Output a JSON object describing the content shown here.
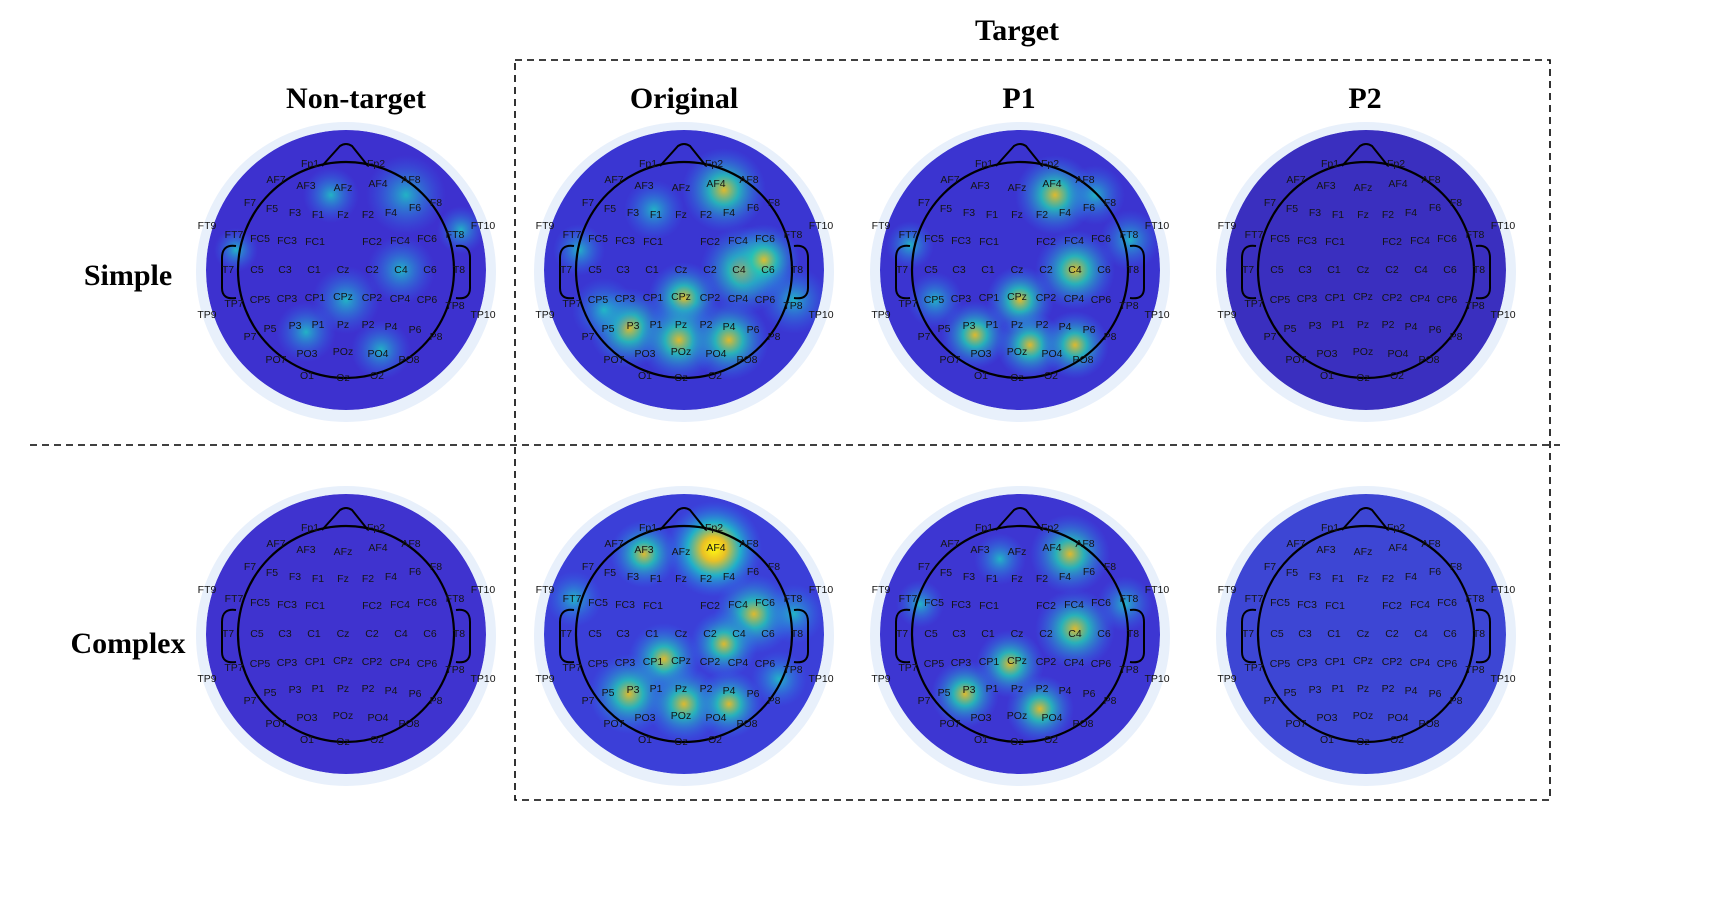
{
  "target_label": "Target",
  "columns": [
    {
      "key": "nontarget",
      "label": "Non-target"
    },
    {
      "key": "original",
      "label": "Original"
    },
    {
      "key": "p1",
      "label": "P1"
    },
    {
      "key": "p2",
      "label": "P2"
    }
  ],
  "rows": [
    {
      "key": "simple",
      "label": "Simple"
    },
    {
      "key": "complex",
      "label": "Complex"
    }
  ],
  "electrode_labels": [
    "Fp1",
    "Fp2",
    "AF7",
    "AF3",
    "AFz",
    "AF4",
    "AF8",
    "F7",
    "F5",
    "F3",
    "F1",
    "Fz",
    "F2",
    "F4",
    "F6",
    "F8",
    "FT9",
    "FT7",
    "FC5",
    "FC3",
    "FC1",
    "FC2",
    "FC4",
    "FC6",
    "FT8",
    "FT10",
    "T7",
    "C5",
    "C3",
    "C1",
    "Cz",
    "C2",
    "C4",
    "C6",
    "T8",
    "TP9",
    "TP7",
    "CP5",
    "CP3",
    "CP1",
    "CPz",
    "CP2",
    "CP4",
    "CP6",
    "TP8",
    "TP10",
    "P7",
    "P5",
    "P3",
    "P1",
    "Pz",
    "P2",
    "P4",
    "P6",
    "P8",
    "PO7",
    "PO3",
    "POz",
    "PO4",
    "PO8",
    "O1",
    "Oz",
    "O2"
  ],
  "colors": {
    "low": "#3d2bd0",
    "mid": "#18c7c9",
    "high": "#f5e21c",
    "highest": "#ffff00",
    "halo": "#e8f0fb"
  },
  "activation_profiles": {
    "simple": {
      "nontarget": "low, weak right-frontal/central",
      "original": "high, fronto-parietal",
      "p1": "moderate, fronto-parietal",
      "p2": "minimal"
    },
    "complex": {
      "nontarget": "minimal",
      "original": "highest, frontal",
      "p1": "moderate, fronto-parietal",
      "p2": "minimal"
    }
  }
}
